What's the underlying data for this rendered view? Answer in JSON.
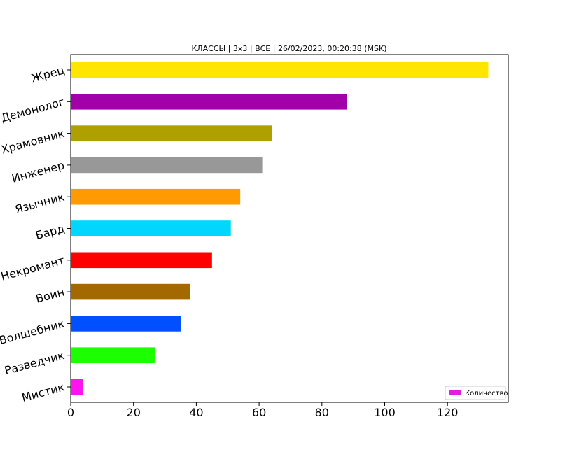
{
  "chart_data": {
    "type": "bar",
    "orientation": "horizontal",
    "title": "КЛАССЫ | 3x3 | ВСЕ | 26/02/2023, 00:20:38 (MSK)",
    "xlabel": "",
    "ylabel": "",
    "xlim": [
      0,
      140
    ],
    "xticks": [
      0,
      20,
      40,
      60,
      80,
      100,
      120
    ],
    "grid": false,
    "legend": {
      "label": "Количество",
      "position": "bottom-right",
      "color": "#e21ce2"
    },
    "categories": [
      "Жрец",
      "Демонолог",
      "Храмовник",
      "Инженер",
      "Язычник",
      "Бард",
      "Некромант",
      "Воин",
      "Волшебник",
      "Разведчик",
      "Мистик"
    ],
    "values": [
      133,
      88,
      64,
      61,
      54,
      51,
      45,
      38,
      35,
      27,
      4
    ],
    "colors": [
      "#ffe500",
      "#a200a8",
      "#aea000",
      "#989898",
      "#ff9a00",
      "#00d6ff",
      "#ff0000",
      "#a36900",
      "#0050ff",
      "#1cff00",
      "#ff13ee"
    ]
  }
}
